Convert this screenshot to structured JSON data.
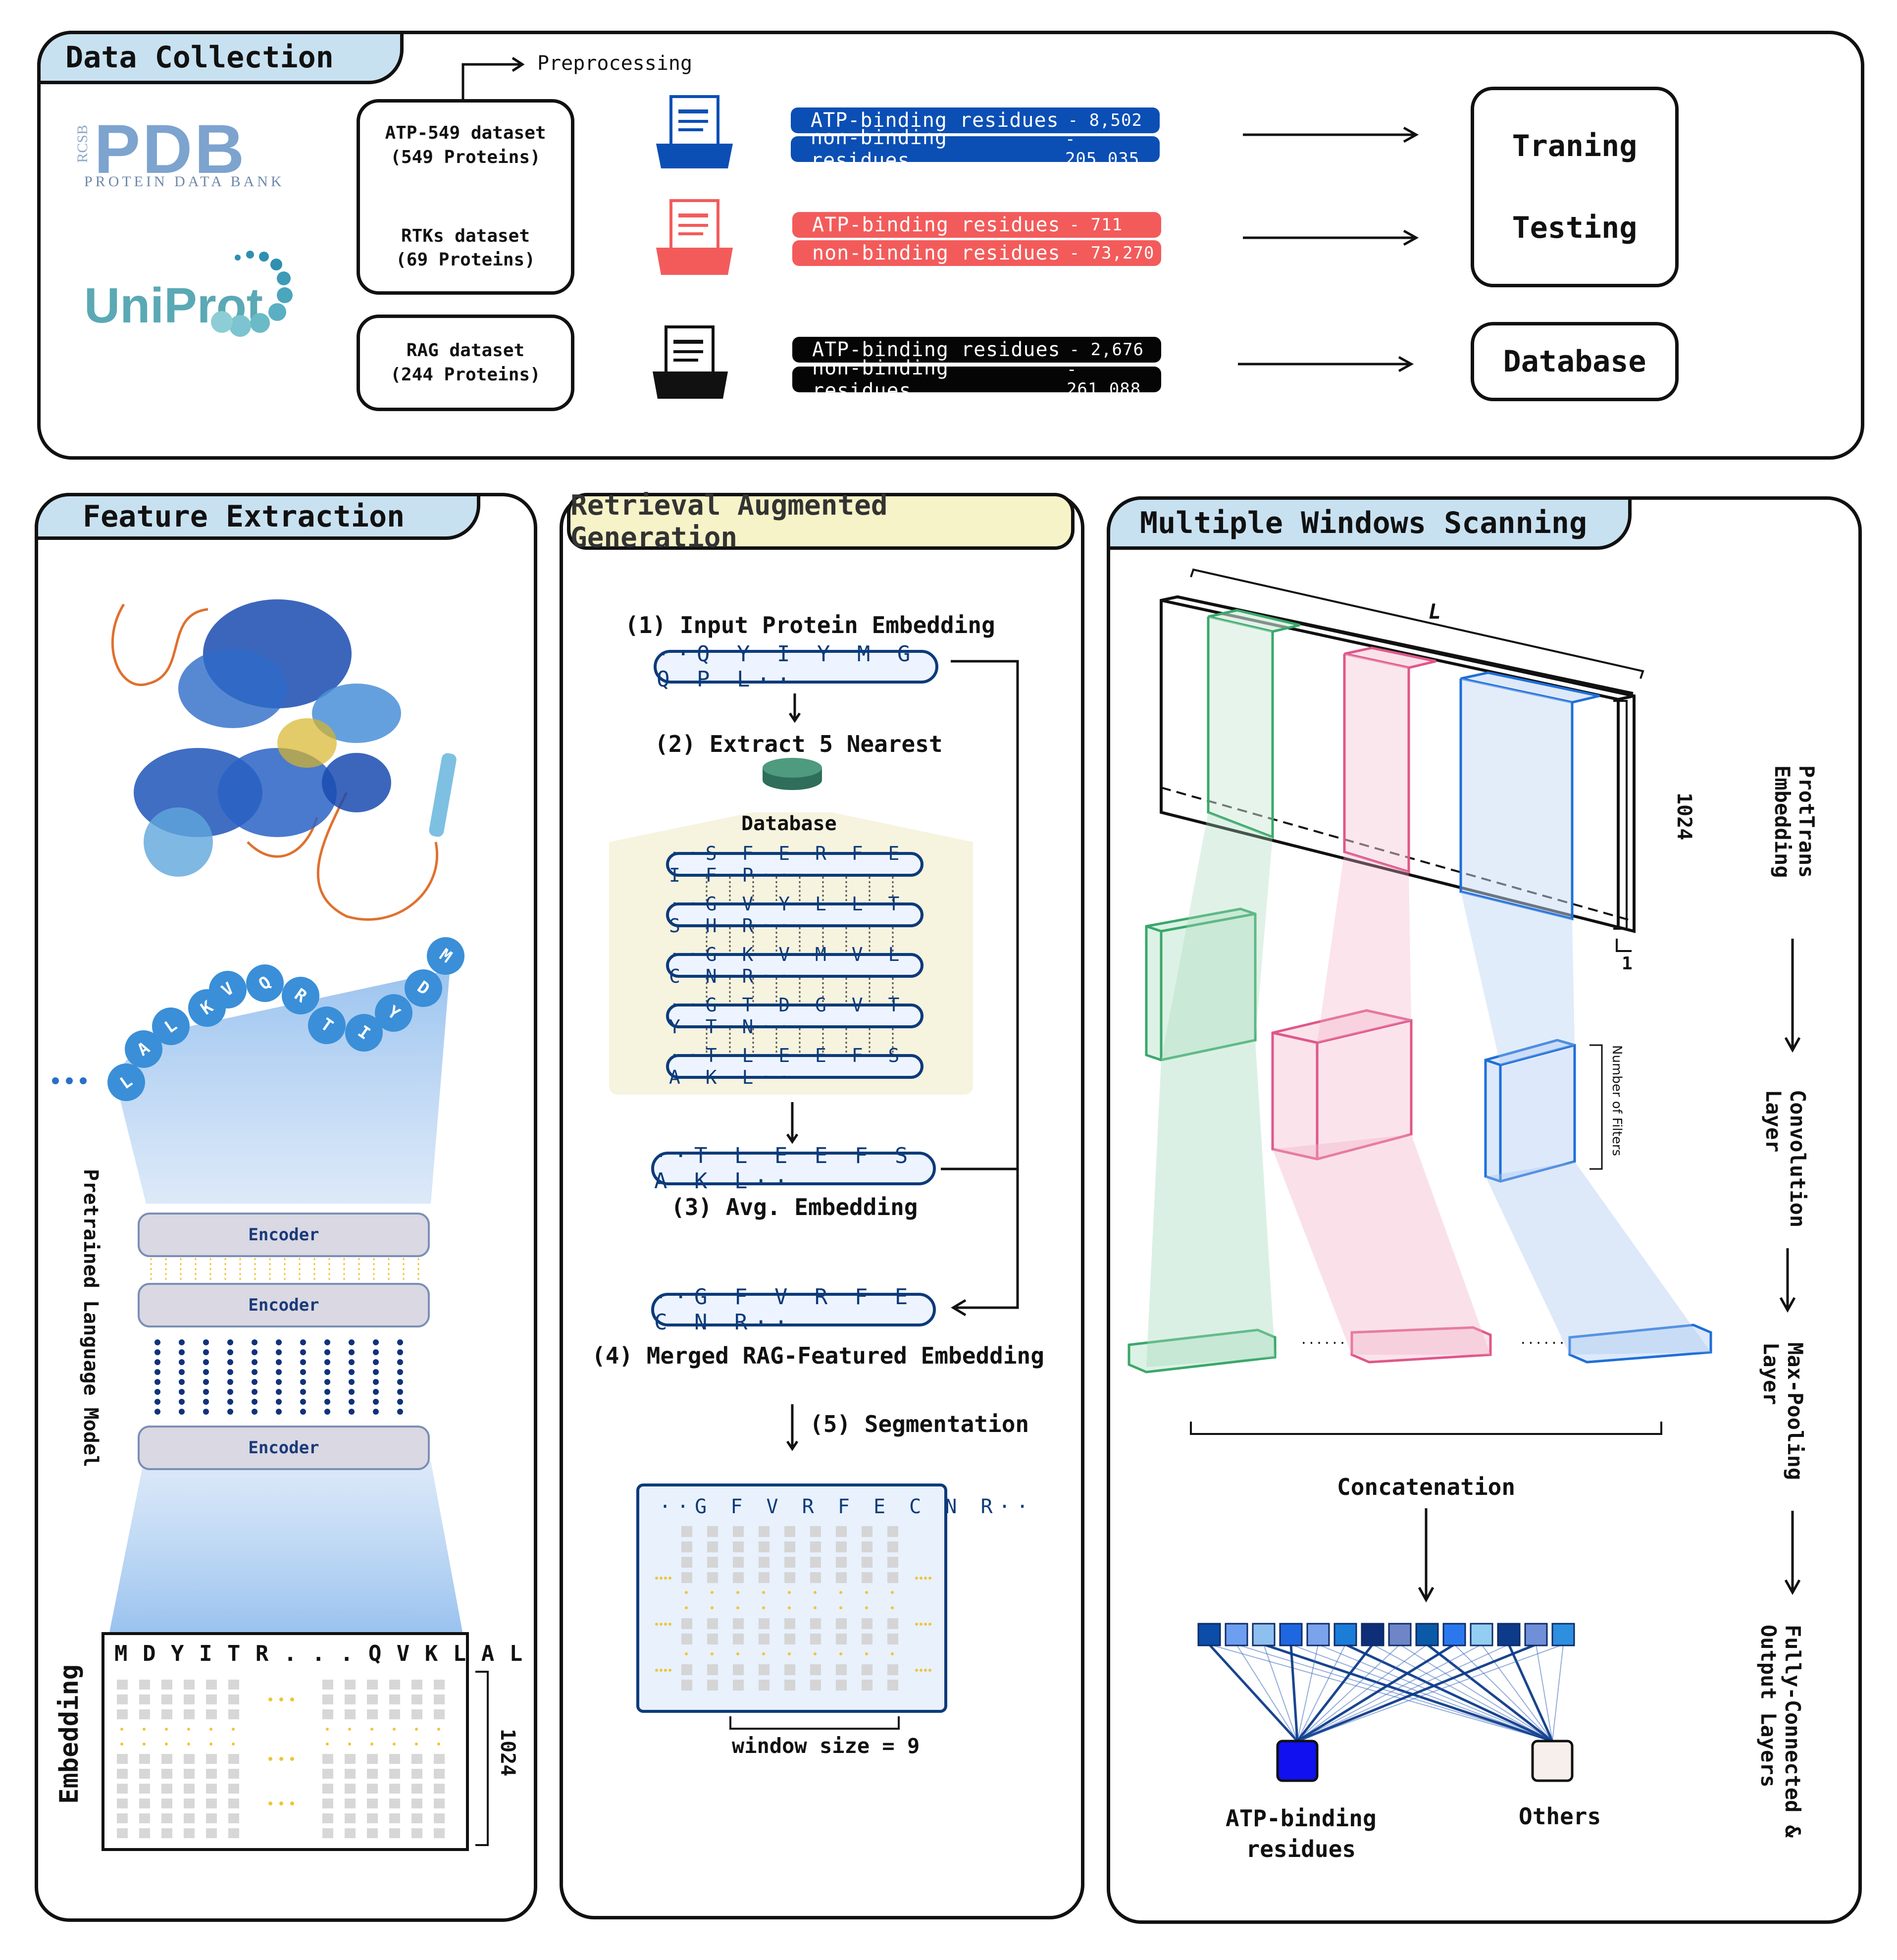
{
  "data_collection": {
    "title": "Data Collection",
    "preprocessing": "Preprocessing",
    "logos": {
      "pdb_prefix": "RCSB",
      "pdb_main": "PDB",
      "pdb_sub": "PROTEIN DATA BANK",
      "uniprot": "UniProt"
    },
    "datasets": [
      {
        "name": "ATP-549 dataset",
        "count": "(549 Proteins)"
      },
      {
        "name": "RTKs dataset",
        "count": "(69 Proteins)"
      },
      {
        "name": "RAG dataset",
        "count": "(244 Proteins)"
      }
    ],
    "residue_groups": [
      {
        "color": "#0b4fb5",
        "binding_label": "ATP-binding residues",
        "binding_value": "- 8,502",
        "nonbinding_label": "non-binding residues",
        "nonbinding_value": "- 205,035"
      },
      {
        "color": "#f35b5b",
        "binding_label": "ATP-binding residues",
        "binding_value": "- 711",
        "nonbinding_label": "non-binding residues",
        "nonbinding_value": "- 73,270"
      },
      {
        "color": "#050505",
        "binding_label": "ATP-binding residues",
        "binding_value": "- 2,676",
        "nonbinding_label": "non-binding residues",
        "nonbinding_value": "- 261,088"
      }
    ],
    "targets": {
      "training": "Traning",
      "testing": "Testing",
      "database": "Database"
    }
  },
  "feature_extraction": {
    "title": "Feature Extraction",
    "seq_letters": [
      "L",
      "A",
      "L",
      "K",
      "V",
      "Q",
      "R",
      "T",
      "I",
      "Y",
      "D",
      "M"
    ],
    "dots": "• • •",
    "encoder_labels": [
      "Encoder",
      "Encoder",
      "Encoder"
    ],
    "model_label": "Pretrained Language Model",
    "embedding_header": "M D Y I T R . . . Q V K L A L",
    "embedding_label": "Embedding",
    "dim_label": "1024"
  },
  "rag": {
    "title": "Retrieval Augmented Generation",
    "step1": "(1) Input Protein Embedding",
    "input_seq": "··Q Y I Y M G Q P L··",
    "step2": "(2) Extract 5 Nearest",
    "database_label": "Database",
    "neighbors": [
      "··S F E R F E I F P··",
      "··G V Y L L T S H R··",
      "··G K V M V L C N R··",
      "··G T D G V T Y T N··",
      "··T L E E F S A K L··"
    ],
    "avg_seq": "··T L E E F S A K L··",
    "step3": "(3) Avg. Embedding",
    "merged_seq": "··G F V R F E C N R··",
    "step4": "(4) Merged RAG-Featured Embedding",
    "step5": "(5) Segmentation",
    "window_seq": "··G F V R F E C N R··",
    "window_label": "window size = 9"
  },
  "mws": {
    "title": "Multiple Windows Scanning",
    "length_label": "L",
    "dim_label": "1024",
    "one_label": "1",
    "filters_label": "Number of Filters",
    "ellipsis": "......",
    "concat_label": "Concatenation",
    "out_binding_1": "ATP-binding",
    "out_binding_2": "residues",
    "out_others": "Others",
    "steps": [
      "ProtTrans Embedding",
      "Convolution Layer",
      "Max-Pooling Layer",
      "Fully-Connected & Output Layers"
    ],
    "colors": {
      "green": "#3aa86b",
      "pink": "#e0578a",
      "blue": "#1f6fd8"
    }
  }
}
